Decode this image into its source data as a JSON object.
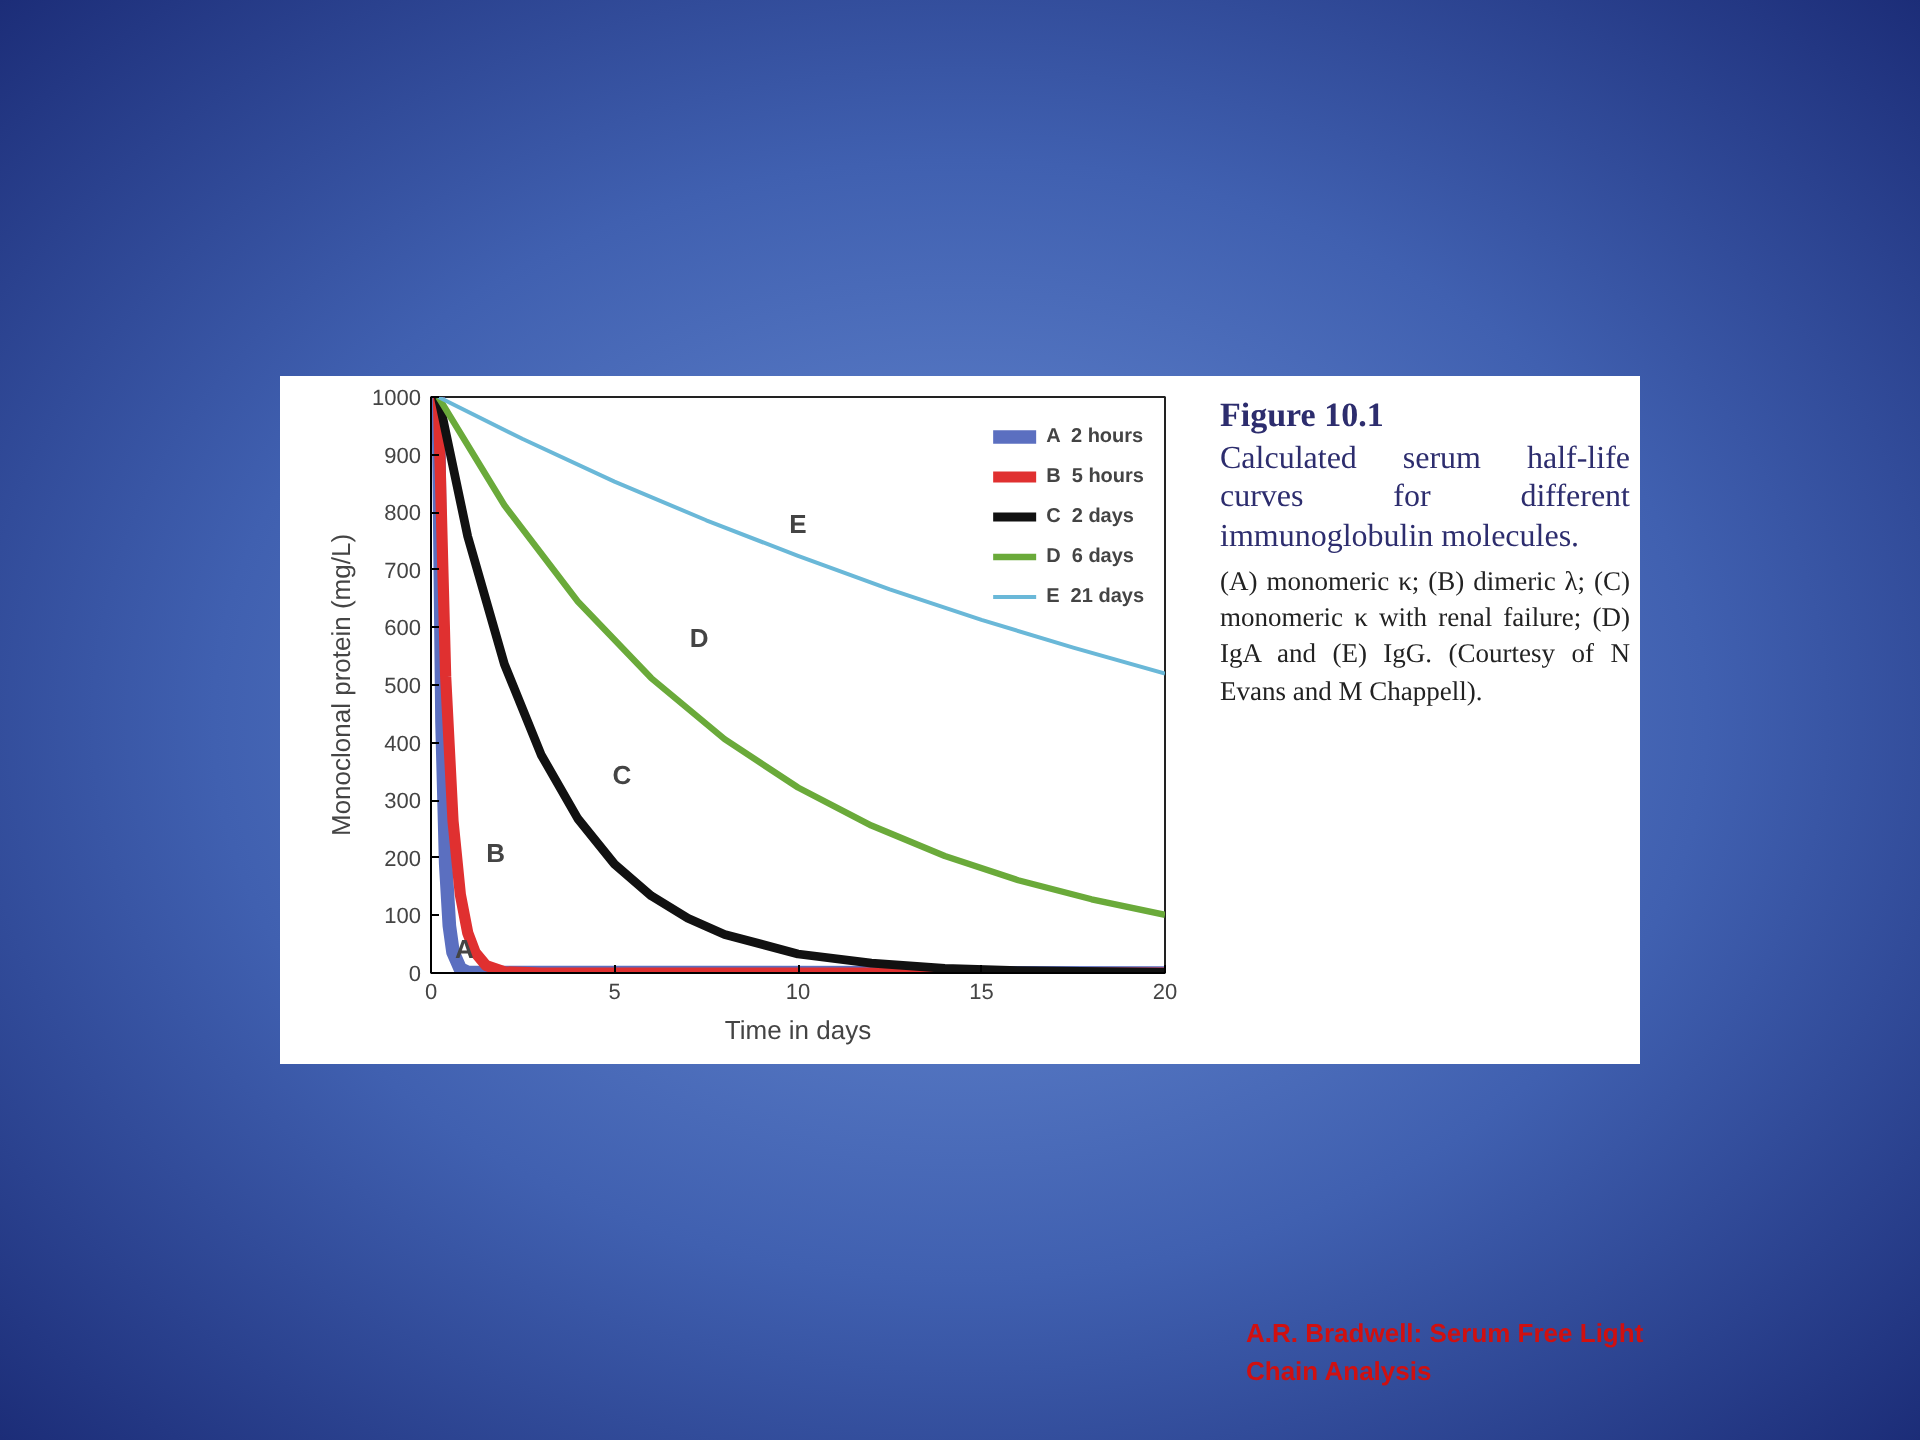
{
  "chart_data": {
    "type": "line",
    "title": "Figure 10.1",
    "subtitle": "Calculated serum half-life curves for different immunoglobulin molecules.",
    "xlabel": "Time in days",
    "ylabel": "Monoclonal protein (mg/L)",
    "xlim": [
      0,
      20
    ],
    "ylim": [
      0,
      1000
    ],
    "xticks": [
      0,
      5,
      10,
      15,
      20
    ],
    "yticks": [
      0,
      100,
      200,
      300,
      400,
      500,
      600,
      700,
      800,
      900,
      1000
    ],
    "grid": false,
    "legend": "top right",
    "marker": "none",
    "line_style": "solid",
    "series": [
      {
        "name": "A  2 hours",
        "color": "#5b6fc0",
        "x": [
          0.2,
          0.3,
          0.4,
          0.5,
          0.6,
          0.8,
          1.0,
          20
        ],
        "values": [
          1000,
          435,
          190,
          82,
          36,
          7,
          1,
          0
        ]
      },
      {
        "name": "B  5 hours",
        "color": "#e03030",
        "x": [
          0.2,
          0.4,
          0.6,
          0.8,
          1.0,
          1.2,
          1.5,
          2.0,
          3.0,
          20
        ],
        "values": [
          1000,
          514,
          264,
          136,
          70,
          36,
          13,
          2,
          0,
          0
        ]
      },
      {
        "name": "C  2 days",
        "color": "#111111",
        "x": [
          0.2,
          1,
          2,
          3,
          4,
          5,
          6,
          7,
          8,
          10,
          12,
          14,
          16,
          20
        ],
        "values": [
          1000,
          758,
          536,
          379,
          268,
          189,
          134,
          95,
          67,
          33,
          17,
          8,
          4,
          1
        ]
      },
      {
        "name": "D  6 days",
        "color": "#6aaa3a",
        "x": [
          0.2,
          2,
          4,
          6,
          8,
          10,
          12,
          14,
          16,
          18,
          20
        ],
        "values": [
          1000,
          812,
          645,
          512,
          406,
          322,
          256,
          203,
          161,
          128,
          101
        ]
      },
      {
        "name": "E  21 days",
        "color": "#6ab8d8",
        "x": [
          0.2,
          2.5,
          5,
          7.5,
          10,
          12.5,
          15,
          17.5,
          20
        ],
        "values": [
          1000,
          927,
          853,
          786,
          724,
          666,
          613,
          565,
          520
        ]
      }
    ],
    "annotations": [
      {
        "text": "A",
        "x": 0.8,
        "y": 7
      },
      {
        "text": "B",
        "x": 1.0,
        "y": 70
      },
      {
        "text": "C",
        "x": 4,
        "y": 268
      },
      {
        "text": "D",
        "x": 6,
        "y": 512
      },
      {
        "text": "E",
        "x": 10,
        "y": 724
      },
      "(A) monomeric κ; (B) dimeric λ; (C) monomeric κ with renal failure; (D) IgA and (E) IgG. (Courtesy of N Evans and M Chappell).",
      "A.R. Bradwell: Serum Free Light Chain Analysis"
    ]
  }
}
